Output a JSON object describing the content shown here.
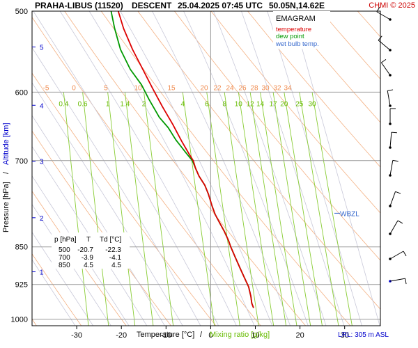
{
  "header": {
    "station": "PRAHA-LIBUS (11520)",
    "mode": "DESCENT",
    "datetime": "25.04.2025 07:45 UTC",
    "coords": "50.05N,14.62E",
    "copyright": "CHMI © 2025"
  },
  "legend": {
    "title": "EMAGRAM",
    "temperature": "temperature",
    "dew_point": "dew point",
    "wet_bulb": "wet bulb temp.",
    "colors": {
      "temperature": "#dd0000",
      "dew_point": "#009900",
      "wet_bulb": "#3366cc"
    }
  },
  "axes": {
    "x_label_temp": "Temperature [°C]",
    "x_label_sep": "/",
    "x_label_mix": "Mixing ratio [g/kg]",
    "y_label_pres": "Pressure [hPa]",
    "y_label_sep": "/",
    "y_label_alt": "Altitude [km]",
    "footer": "LRL: 305 m ASL",
    "wbzl": "WBZL"
  },
  "table": {
    "headers": [
      "p [hPa]",
      "T",
      "Td [°C]"
    ],
    "rows": [
      [
        "500",
        "-20.7",
        "-22.3"
      ],
      [
        "700",
        "-3.9",
        "-4.1"
      ],
      [
        "850",
        "4.5",
        "4.5"
      ]
    ]
  },
  "chart_data": {
    "type": "line",
    "title": "PRAHA-LIBUS (11520) DESCENT 25.04.2025 07:45 UTC 50.05N,14.62E",
    "xlabel": "Temperature [°C] / Mixing ratio [g/kg]",
    "ylabel": "Pressure [hPa] / Altitude [km]",
    "xlim": [
      -40,
      38
    ],
    "ylim": [
      1000,
      500
    ],
    "y_scale": "log",
    "x_ticks": [
      "-30",
      "-20",
      "-10",
      "0",
      "10",
      "20",
      "30"
    ],
    "x_tick_values": [
      -30,
      -20,
      -10,
      0,
      10,
      20,
      30
    ],
    "y_ticks": [
      "500",
      "600",
      "700",
      "850",
      "925",
      "1000"
    ],
    "y_tick_values": [
      500,
      600,
      700,
      850,
      925,
      1000
    ],
    "altitude_ticks": [
      {
        "label": "5",
        "p": 542
      },
      {
        "label": "4",
        "p": 618
      },
      {
        "label": "3",
        "p": 701
      },
      {
        "label": "2",
        "p": 796
      },
      {
        "label": "1",
        "p": 899
      }
    ],
    "mixing_ratio_labels": [
      "0.4",
      "0.6",
      "1",
      "1.4",
      "2",
      "4",
      "6",
      "8",
      "10",
      "12",
      "14",
      "17",
      "20",
      "25",
      "30"
    ],
    "mixing_ratio_values": [
      0.4,
      0.6,
      1,
      1.4,
      2,
      4,
      6,
      8,
      10,
      12,
      14,
      17,
      20,
      25,
      30
    ],
    "theta_labels": [
      "-5",
      "0",
      "5",
      "10",
      "15",
      "20",
      "22",
      "24",
      "26",
      "28",
      "30",
      "32",
      "34"
    ],
    "wbzl_p": 788,
    "series": [
      {
        "name": "temperature",
        "points": [
          [
            -20.7,
            500
          ],
          [
            -19.5,
            520
          ],
          [
            -17.5,
            545
          ],
          [
            -15.2,
            570
          ],
          [
            -13.0,
            595
          ],
          [
            -10.8,
            620
          ],
          [
            -8.5,
            645
          ],
          [
            -6.5,
            670
          ],
          [
            -4.8,
            690
          ],
          [
            -3.9,
            700
          ],
          [
            -3.4,
            712
          ],
          [
            -2.6,
            725
          ],
          [
            -1.3,
            740
          ],
          [
            -0.5,
            755
          ],
          [
            0.3,
            775
          ],
          [
            1.0,
            790
          ],
          [
            2.0,
            805
          ],
          [
            3.0,
            820
          ],
          [
            4.0,
            838
          ],
          [
            4.5,
            850
          ],
          [
            5.5,
            870
          ],
          [
            6.5,
            890
          ],
          [
            7.5,
            910
          ],
          [
            8.5,
            930
          ],
          [
            9.0,
            950
          ],
          [
            9.2,
            965
          ],
          [
            9.6,
            975
          ]
        ]
      },
      {
        "name": "dew point",
        "points": [
          [
            -22.3,
            500
          ],
          [
            -21.5,
            520
          ],
          [
            -20.2,
            545
          ],
          [
            -18.0,
            570
          ],
          [
            -15.5,
            590
          ],
          [
            -13.8,
            610
          ],
          [
            -11.5,
            635
          ],
          [
            -9.5,
            650
          ],
          [
            -7.8,
            668
          ],
          [
            -5.5,
            688
          ],
          [
            -4.1,
            700
          ],
          [
            -3.4,
            712
          ],
          [
            -2.6,
            725
          ],
          [
            -1.3,
            740
          ],
          [
            -0.5,
            755
          ],
          [
            0.3,
            775
          ],
          [
            1.0,
            790
          ],
          [
            2.0,
            805
          ],
          [
            3.0,
            820
          ],
          [
            4.0,
            838
          ],
          [
            4.5,
            850
          ],
          [
            5.5,
            870
          ],
          [
            6.5,
            890
          ],
          [
            7.5,
            910
          ],
          [
            8.5,
            930
          ],
          [
            9.0,
            950
          ],
          [
            9.2,
            965
          ],
          [
            9.6,
            975
          ]
        ]
      }
    ],
    "grid": true
  }
}
